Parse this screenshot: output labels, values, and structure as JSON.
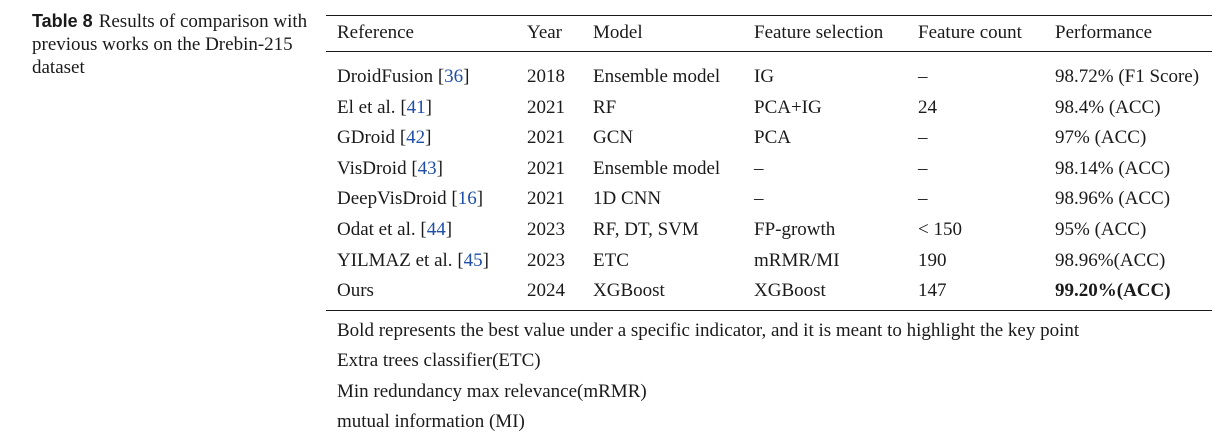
{
  "caption": {
    "label": "Table 8",
    "text": "Results of comparison with previous works on the Drebin-215 dataset"
  },
  "table": {
    "headers": {
      "reference": "Reference",
      "year": "Year",
      "model": "Model",
      "feature_selection": "Feature selection",
      "feature_count": "Feature count",
      "performance": "Performance"
    },
    "rows": [
      {
        "ref": "DroidFusion",
        "cite": "36",
        "year": "2018",
        "model": "Ensemble model",
        "fs": "IG",
        "fc": "–",
        "perf": "98.72% (F1 Score)"
      },
      {
        "ref": "El et al.",
        "cite": "41",
        "year": "2021",
        "model": "RF",
        "fs": "PCA+IG",
        "fc": "24",
        "perf": "98.4% (ACC)"
      },
      {
        "ref": "GDroid",
        "cite": "42",
        "year": "2021",
        "model": "GCN",
        "fs": "PCA",
        "fc": "–",
        "perf": "97% (ACC)"
      },
      {
        "ref": "VisDroid",
        "cite": "43",
        "year": "2021",
        "model": "Ensemble model",
        "fs": "–",
        "fc": "–",
        "perf": "98.14% (ACC)"
      },
      {
        "ref": "DeepVisDroid",
        "cite": "16",
        "year": "2021",
        "model": "1D CNN",
        "fs": "–",
        "fc": "–",
        "perf": "98.96% (ACC)"
      },
      {
        "ref": "Odat et al.",
        "cite": "44",
        "year": "2023",
        "model": "RF, DT, SVM",
        "fs": "FP-growth",
        "fc": "< 150",
        "perf": "95% (ACC)"
      },
      {
        "ref": "YILMAZ et al.",
        "cite": "45",
        "year": "2023",
        "model": "ETC",
        "fs": "mRMR/MI",
        "fc": "190",
        "perf": "98.96%(ACC)"
      },
      {
        "ref": "Ours",
        "cite": "",
        "year": "2024",
        "model": "XGBoost",
        "fs": "XGBoost",
        "fc": "147",
        "perf": "99.20%(ACC)"
      }
    ]
  },
  "notes": [
    "Bold represents the best value under a specific indicator, and it is meant to highlight the key point",
    "Extra trees classifier(ETC)",
    "Min redundancy max relevance(mRMR)",
    "mutual information (MI)"
  ]
}
